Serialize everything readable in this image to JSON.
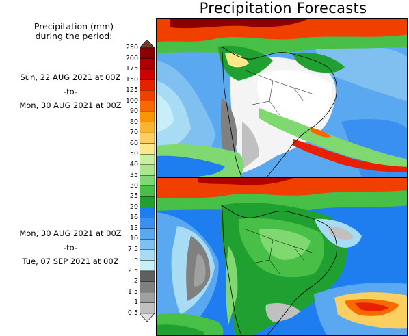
{
  "title": "Precipitation Forecasts",
  "legend": {
    "heading": [
      "Precipitation (mm)",
      "during the period:"
    ],
    "ticks": [
      "250",
      "200",
      "175",
      "150",
      "125",
      "100",
      "90",
      "80",
      "70",
      "60",
      "50",
      "40",
      "35",
      "30",
      "25",
      "20",
      "16",
      "13",
      "10",
      "7.5",
      "5",
      "2.5",
      "2",
      "1.5",
      "1",
      "0.5"
    ],
    "colors": [
      "#6b3a2e",
      "#8b0000",
      "#b00000",
      "#d00000",
      "#e82000",
      "#f04000",
      "#f86a00",
      "#fa9400",
      "#fbb430",
      "#fcd060",
      "#fce888",
      "#c8f0a0",
      "#a8e890",
      "#80d870",
      "#48c048",
      "#20a030",
      "#1e7ef0",
      "#3a90f0",
      "#5aa8f0",
      "#80c0f0",
      "#a8dcf4",
      "#c8eef8",
      "#606060",
      "#808080",
      "#a0a0a0",
      "#c0c0c0",
      "#e0e0e0"
    ]
  },
  "periods": [
    {
      "start": "Sun, 22 AUG 2021 at 00Z",
      "sep": "-to-",
      "end": "Mon, 30 AUG 2021 at 00Z"
    },
    {
      "start": "Mon, 30 AUG 2021 at 00Z",
      "sep": "-to-",
      "end": "Tue, 07 SEP 2021 at 00Z"
    }
  ]
}
